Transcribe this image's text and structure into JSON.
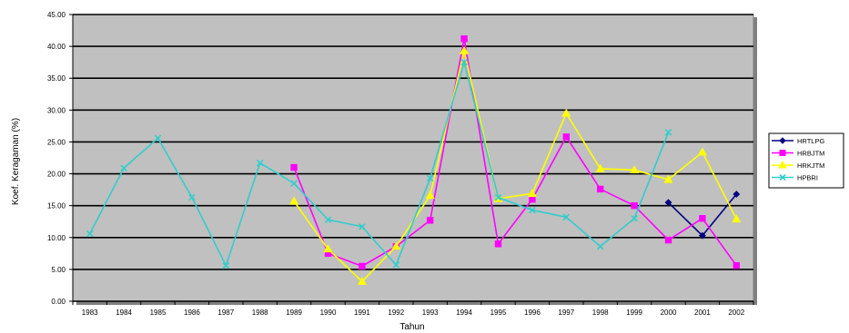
{
  "chart_data": {
    "type": "line",
    "title": "",
    "xlabel": "Tahun",
    "ylabel": "Koef. Keragaman (%)",
    "ylim": [
      0,
      45
    ],
    "y_ticks": [
      "0.00",
      "5.00",
      "10.00",
      "15.00",
      "20.00",
      "25.00",
      "30.00",
      "35.00",
      "40.00",
      "45.00"
    ],
    "categories": [
      "1983",
      "1984",
      "1985",
      "1986",
      "1987",
      "1988",
      "1989",
      "1990",
      "1991",
      "1992",
      "1993",
      "1994",
      "1995",
      "1996",
      "1997",
      "1998",
      "1999",
      "2000",
      "2001",
      "2002"
    ],
    "grid": "horizontal",
    "plot_background": "#C0C0C0",
    "legend_position": "right",
    "series": [
      {
        "name": "HRTLPG",
        "color": "#000080",
        "marker": "diamond",
        "values": [
          null,
          null,
          null,
          null,
          null,
          null,
          null,
          null,
          null,
          null,
          null,
          null,
          null,
          null,
          null,
          null,
          null,
          15.5,
          10.3,
          16.8
        ]
      },
      {
        "name": "HRBJTM",
        "color": "#FF00FF",
        "marker": "square",
        "values": [
          null,
          null,
          null,
          null,
          null,
          null,
          21.0,
          7.5,
          5.5,
          8.6,
          12.7,
          41.2,
          9.0,
          16.0,
          25.8,
          17.6,
          15.0,
          9.6,
          13.0,
          5.6
        ]
      },
      {
        "name": "HRKJTM",
        "color": "#FFFF00",
        "marker": "triangle",
        "values": [
          null,
          null,
          null,
          null,
          null,
          null,
          15.7,
          8.2,
          3.1,
          8.6,
          16.6,
          39.3,
          16.1,
          16.9,
          29.5,
          20.8,
          20.6,
          19.1,
          23.4,
          12.9
        ]
      },
      {
        "name": "HPBRI",
        "color": "#33CCCC",
        "marker": "x",
        "values": [
          10.6,
          20.9,
          25.6,
          16.3,
          5.6,
          21.7,
          18.5,
          12.8,
          11.7,
          5.7,
          19.3,
          37.5,
          16.3,
          14.3,
          13.2,
          8.6,
          13.0,
          26.5,
          null,
          null
        ]
      }
    ]
  }
}
